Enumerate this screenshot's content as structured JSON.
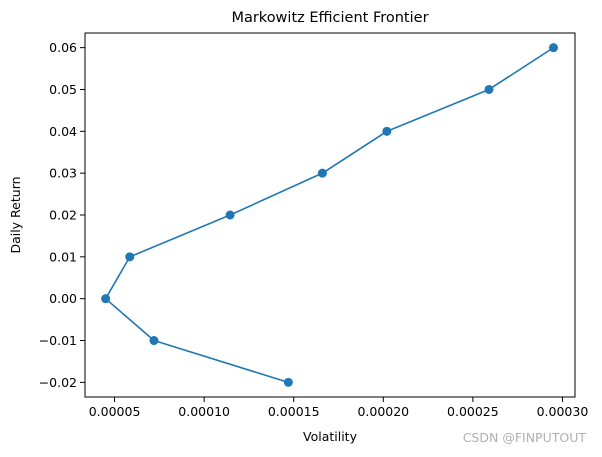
{
  "chart_data": {
    "type": "line",
    "title": "Markowitz Efficient Frontier",
    "xlabel": "Volatility",
    "ylabel": "Daily Return",
    "xlim": [
      3.35e-05,
      0.000307
    ],
    "ylim": [
      -0.0235,
      0.0635
    ],
    "grid": false,
    "marker": "circle",
    "series": [
      {
        "color": "#1f77b4",
        "x": [
          0.000147,
          7.2e-05,
          4.5e-05,
          5.85e-05,
          0.0001145,
          0.000166,
          0.000202,
          0.000259,
          0.000295
        ],
        "y": [
          -0.02,
          -0.01,
          0.0,
          0.01,
          0.02,
          0.03,
          0.04,
          0.05,
          0.06
        ]
      }
    ],
    "xticks": [
      5e-05,
      0.0001,
      0.00015,
      0.0002,
      0.00025,
      0.0003
    ],
    "xtick_labels": [
      "0.00005",
      "0.00010",
      "0.00015",
      "0.00020",
      "0.00025",
      "0.00030"
    ],
    "yticks": [
      -0.02,
      -0.01,
      0.0,
      0.01,
      0.02,
      0.03,
      0.04,
      0.05,
      0.06
    ],
    "ytick_labels": [
      "−0.02",
      "−0.01",
      "0.00",
      "0.01",
      "0.02",
      "0.03",
      "0.04",
      "0.05",
      "0.06"
    ]
  },
  "watermark": "CSDN @FINPUTOUT"
}
